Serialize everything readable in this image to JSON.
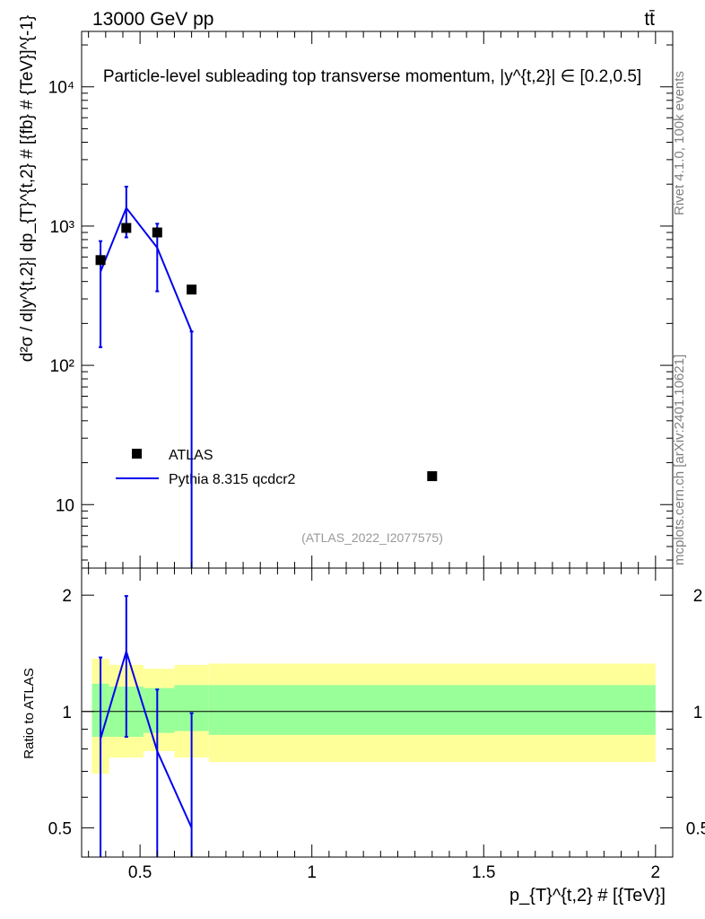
{
  "header": {
    "energy_label": "13000 GeV pp",
    "process_label": "tt̄"
  },
  "side_labels": {
    "rivet": "Rivet 4.1.0,  100k events",
    "mcplots": "mcplots.cern.ch [arXiv:2401.10621]"
  },
  "chart_data": [
    {
      "type": "scatter",
      "panel": "main",
      "title": "Particle-level subleading top transverse momentum, |y^{t,2}| ∈ [0.2,0.5]",
      "ylabel": "d²σ / d|y^{t,2}| dp_{T}^{t,2} # [{fb} # {TeV}]^{-1}",
      "xlabel": "",
      "yscale": "log",
      "ylim": [
        3.5,
        25000
      ],
      "xlim": [
        0.33,
        2.05
      ],
      "y_ticks": [
        10,
        100,
        1000,
        10000
      ],
      "y_tick_labels": [
        "10",
        "10²",
        "10³",
        "10⁴"
      ],
      "analysis_label": "(ATLAS_2022_I2077575)",
      "legend": [
        "ATLAS",
        "Pythia 8.315 qcdcr2"
      ],
      "series": [
        {
          "name": "ATLAS",
          "style": "markers",
          "color": "#000000",
          "x": [
            0.385,
            0.46,
            0.55,
            0.65,
            1.35
          ],
          "y": [
            570,
            970,
            900,
            350,
            16
          ],
          "y_low": [
            570,
            970,
            900,
            350,
            16
          ],
          "y_high": [
            570,
            970,
            900,
            350,
            16
          ]
        },
        {
          "name": "Pythia 8.315 qcdcr2",
          "style": "line",
          "color": "#0000ee",
          "x": [
            0.385,
            0.46,
            0.55,
            0.65
          ],
          "y": [
            470,
            1350,
            700,
            175
          ],
          "y_low": [
            135,
            830,
            340,
            1
          ],
          "y_high": [
            780,
            1920,
            1040,
            175
          ]
        }
      ]
    },
    {
      "type": "line",
      "panel": "ratio",
      "ylabel": "Ratio to ATLAS",
      "xlabel": "p_{T}^{t,2} # [{TeV}]",
      "xlim": [
        0.33,
        2.05
      ],
      "ylim": [
        0.42,
        2.35
      ],
      "x_ticks": [
        0.5,
        1,
        1.5,
        2
      ],
      "x_tick_labels": [
        "0.5",
        "1",
        "1.5",
        "2"
      ],
      "y_ticks": [
        0.5,
        1,
        2
      ],
      "y_tick_labels": [
        "0.5",
        "1",
        "2"
      ],
      "bands": {
        "edges": [
          0.36,
          0.41,
          0.51,
          0.6,
          0.7,
          2.0
        ],
        "inner_low": [
          0.86,
          0.86,
          0.88,
          0.89,
          0.87
        ],
        "inner_high": [
          1.18,
          1.16,
          1.15,
          1.17,
          1.17
        ],
        "outer_low": [
          0.69,
          0.76,
          0.79,
          0.76,
          0.74
        ],
        "outer_high": [
          1.37,
          1.32,
          1.29,
          1.32,
          1.33
        ],
        "inner_color": "#99ff99",
        "outer_color": "#ffff99"
      },
      "series": [
        {
          "name": "Pythia 8.315 qcdcr2",
          "color": "#0000ee",
          "x": [
            0.385,
            0.46,
            0.55,
            0.65
          ],
          "y": [
            0.85,
            1.43,
            0.79,
            0.5
          ],
          "y_low": [
            0.3,
            0.86,
            0.3,
            0.3
          ],
          "y_high": [
            1.38,
            1.99,
            1.14,
            0.99
          ]
        }
      ]
    }
  ]
}
